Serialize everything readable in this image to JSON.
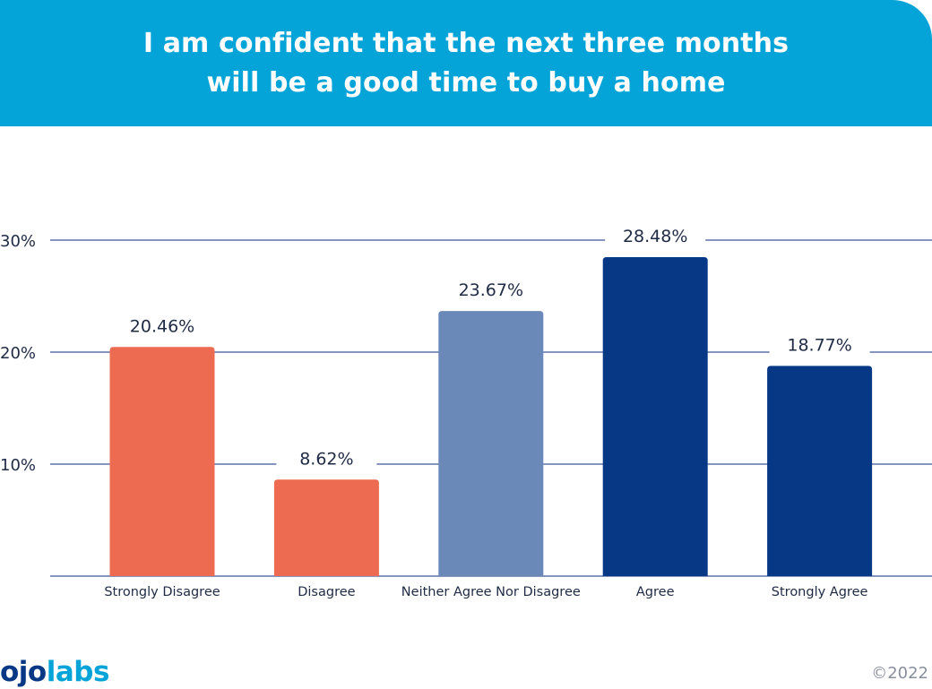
{
  "header": {
    "title_line1": "I am confident that the next three months",
    "title_line2": "will be a good time to buy a home",
    "background_color": "#05a4d8"
  },
  "chart_data": {
    "type": "bar",
    "title": "I am confident that the next three months will be a good time to buy a home",
    "xlabel": "",
    "ylabel": "",
    "categories": [
      "Strongly Disagree",
      "Disagree",
      "Neither Agree Nor Disagree",
      "Agree",
      "Strongly Agree"
    ],
    "values": [
      20.46,
      8.62,
      23.67,
      28.48,
      18.77
    ],
    "value_labels": [
      "20.46%",
      "8.62%",
      "23.67%",
      "28.48%",
      "18.77%"
    ],
    "colors": [
      "#ed6b50",
      "#ed6b50",
      "#6a89b8",
      "#073886",
      "#073886"
    ],
    "ylim": [
      0,
      30
    ],
    "yticks": [
      10,
      20,
      30
    ],
    "ytick_labels": [
      "10%",
      "20%",
      "30%"
    ],
    "grid": true,
    "grid_color": "#5b72a8",
    "legend": "none"
  },
  "footer": {
    "logo_part1": "ojo",
    "logo_part2": "labs",
    "copyright": "©2022"
  }
}
